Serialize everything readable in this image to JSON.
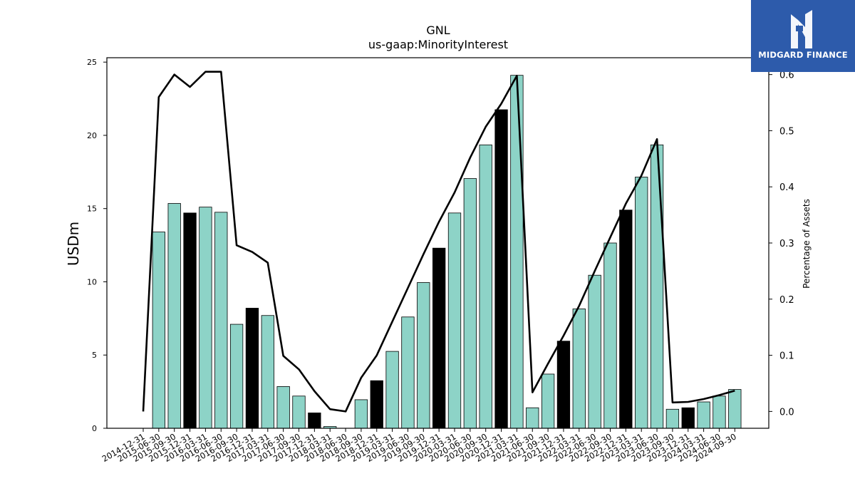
{
  "logo": {
    "text": "MIDGARD FINANCE",
    "bg_color": "#2d5bab"
  },
  "chart_data": {
    "type": "bar",
    "title": "GNL",
    "subtitle": "us-gaap:MinorityInterest",
    "ylabel": "USDm",
    "y2label": "Percentage of Assets",
    "ylim": [
      0,
      25.3
    ],
    "y2lim": [
      -0.03,
      0.63
    ],
    "yticks": [
      0,
      5,
      10,
      15,
      20,
      25
    ],
    "y2ticks": [
      0.0,
      0.1,
      0.2,
      0.3,
      0.4,
      0.5,
      0.6
    ],
    "bar_color": "#8dd3c7",
    "highlight_color": "#000000",
    "line_color": "#000000",
    "grid": false,
    "categories": [
      "2014-12-31",
      "2015-06-30",
      "2015-09-30",
      "2015-12-31",
      "2016-03-31",
      "2016-06-30",
      "2016-09-30",
      "2016-12-31",
      "2017-03-31",
      "2017-06-30",
      "2017-09-30",
      "2017-12-31",
      "2018-03-31",
      "2018-06-30",
      "2018-09-30",
      "2018-12-31",
      "2019-03-31",
      "2019-06-30",
      "2019-09-30",
      "2019-12-31",
      "2020-03-31",
      "2020-06-30",
      "2020-09-30",
      "2020-12-31",
      "2021-03-31",
      "2021-06-30",
      "2021-09-30",
      "2021-12-31",
      "2022-03-31",
      "2022-06-30",
      "2022-09-30",
      "2022-12-31",
      "2023-03-31",
      "2023-06-30",
      "2023-09-30",
      "2023-12-31",
      "2024-03-31",
      "2024-06-30",
      "2024-09-30"
    ],
    "series": [
      {
        "kind": "bar",
        "values": [
          0,
          13.4,
          15.35,
          14.7,
          15.1,
          14.75,
          7.1,
          8.2,
          7.7,
          2.85,
          2.2,
          1.05,
          0.12,
          0,
          1.95,
          3.25,
          5.25,
          7.6,
          9.95,
          12.3,
          14.7,
          17.05,
          19.35,
          21.75,
          24.1,
          1.4,
          3.7,
          5.95,
          8.15,
          10.45,
          12.65,
          14.9,
          17.15,
          19.35,
          1.3,
          1.4,
          1.8,
          2.2,
          2.65
        ],
        "highlight": [
          false,
          false,
          false,
          true,
          false,
          false,
          false,
          true,
          false,
          false,
          false,
          true,
          false,
          false,
          false,
          true,
          false,
          false,
          false,
          true,
          false,
          false,
          false,
          true,
          false,
          false,
          false,
          true,
          false,
          false,
          false,
          true,
          false,
          false,
          false,
          true,
          false,
          false,
          false
        ]
      },
      {
        "kind": "line",
        "axis": "right",
        "values": [
          0.0,
          0.56,
          0.6,
          0.578,
          0.605,
          0.605,
          0.296,
          0.284,
          0.265,
          0.099,
          0.075,
          0.036,
          0.004,
          0.0,
          0.06,
          0.1,
          0.16,
          0.22,
          0.28,
          0.338,
          0.39,
          0.452,
          0.507,
          0.548,
          0.598,
          0.034,
          0.085,
          0.135,
          0.188,
          0.25,
          0.31,
          0.37,
          0.42,
          0.485,
          0.016,
          0.017,
          0.022,
          0.029,
          0.037
        ]
      }
    ]
  }
}
